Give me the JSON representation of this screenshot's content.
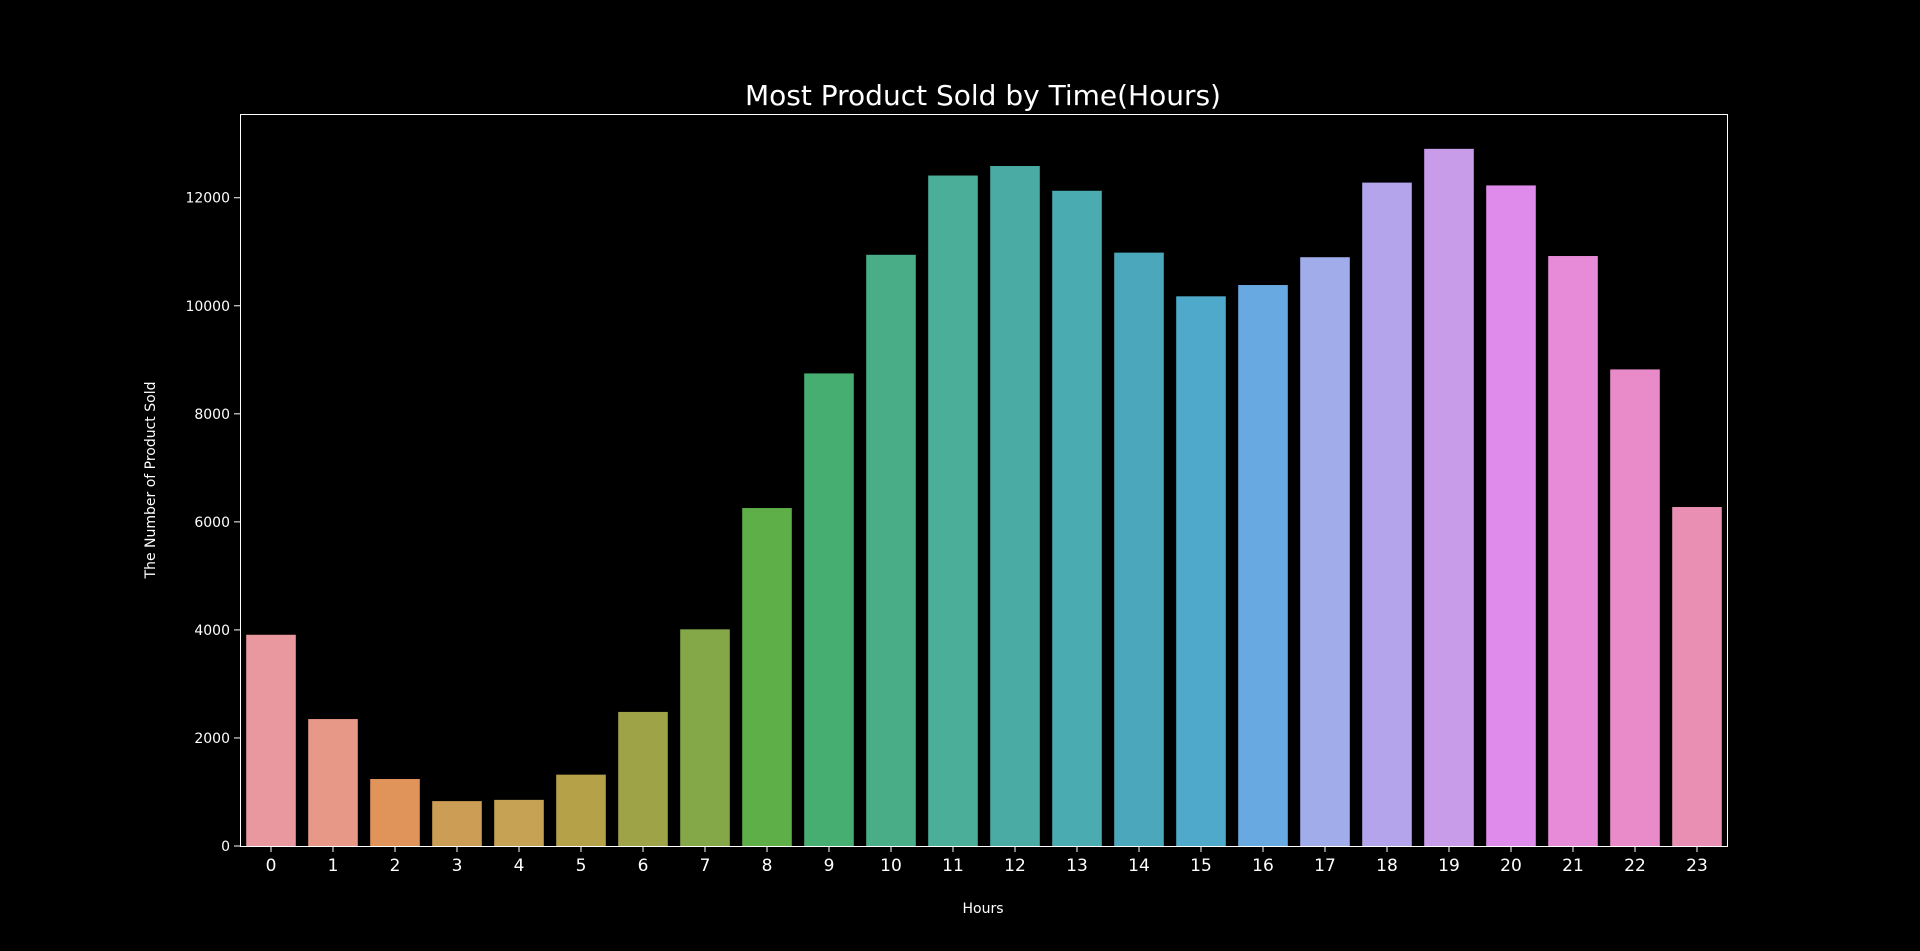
{
  "chart_data": {
    "type": "bar",
    "title": "Most Product Sold by Time(Hours)",
    "xlabel": "Hours",
    "ylabel": "The Number of Product Sold",
    "categories": [
      "0",
      "1",
      "2",
      "3",
      "4",
      "5",
      "6",
      "7",
      "8",
      "9",
      "10",
      "11",
      "12",
      "13",
      "14",
      "15",
      "16",
      "17",
      "18",
      "19",
      "20",
      "21",
      "22",
      "23"
    ],
    "values": [
      3910,
      2350,
      1240,
      831,
      854,
      1321,
      2482,
      4011,
      6256,
      8748,
      10944,
      12411,
      12587,
      12129,
      10984,
      10175,
      10384,
      10899,
      12280,
      12905,
      12228,
      10921,
      8822,
      6275
    ],
    "colors": [
      "#e8989e",
      "#e79886",
      "#e0945a",
      "#cc9d54",
      "#c6a255",
      "#b5a248",
      "#9ea348",
      "#84a847",
      "#5eaf48",
      "#47ae72",
      "#49ae88",
      "#4aae98",
      "#4aaba5",
      "#4aabb0",
      "#4ba7bb",
      "#4fa9cb",
      "#69a9e2",
      "#a1acea",
      "#b3a4ec",
      "#c99cea",
      "#de8beb",
      "#e78ad8",
      "#e98bc9",
      "#e88fb3"
    ],
    "yticks": [
      0,
      2000,
      4000,
      6000,
      8000,
      10000,
      12000
    ],
    "ylim": [
      0,
      13550
    ],
    "legend": "none",
    "grid": false,
    "background": "#000000",
    "foreground": "#ffffff"
  }
}
